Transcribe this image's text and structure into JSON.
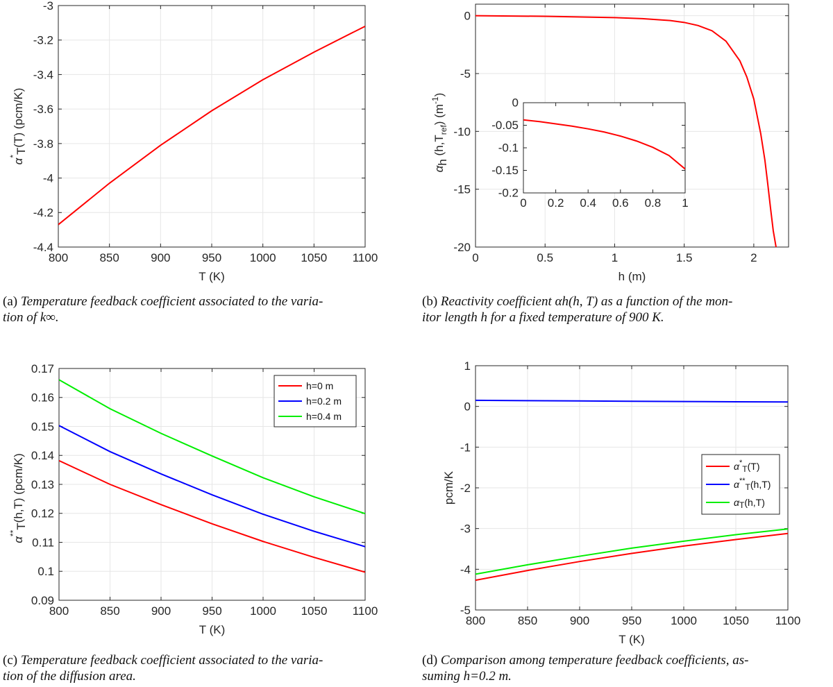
{
  "chart_data": [
    {
      "id": "a",
      "type": "line",
      "xlabel": "T (K)",
      "ylabel": "α*T(T)   (pcm/K)",
      "xlim": [
        800,
        1100
      ],
      "ylim": [
        -4.4,
        -3
      ],
      "xticks": [
        800,
        850,
        900,
        950,
        1000,
        1050,
        1100
      ],
      "yticks": [
        -4.4,
        -4.2,
        -4,
        -3.8,
        -3.6,
        -3.4,
        -3.2,
        -3
      ],
      "ytick_labels": [
        "-4.4",
        "-4.2",
        "-4",
        "-3.8",
        "-3.6",
        "-3.4",
        "-3.2",
        "-3"
      ],
      "grid": true,
      "series": [
        {
          "color": "#ff0000",
          "x": [
            800,
            850,
            900,
            950,
            1000,
            1050,
            1100
          ],
          "y": [
            -4.27,
            -4.03,
            -3.81,
            -3.61,
            -3.43,
            -3.27,
            -3.12
          ]
        }
      ]
    },
    {
      "id": "b",
      "type": "line",
      "xlabel": "h (m)",
      "ylabel": "αh(h,Tref)   (m-1)",
      "xlim": [
        0,
        2.25
      ],
      "ylim": [
        -20,
        1
      ],
      "xticks": [
        0,
        0.5,
        1,
        1.5,
        2
      ],
      "yticks": [
        -20,
        -15,
        -10,
        -5,
        0
      ],
      "grid": true,
      "series": [
        {
          "color": "#ff0000",
          "x": [
            0,
            0.5,
            1.0,
            1.2,
            1.4,
            1.5,
            1.6,
            1.7,
            1.8,
            1.9,
            1.95,
            2.0,
            2.05,
            2.08,
            2.1,
            2.12,
            2.14,
            2.16
          ],
          "y": [
            0,
            -0.05,
            -0.16,
            -0.25,
            -0.42,
            -0.58,
            -0.85,
            -1.3,
            -2.2,
            -3.9,
            -5.3,
            -7.2,
            -10.2,
            -12.5,
            -14.5,
            -16.6,
            -18.6,
            -20
          ]
        }
      ],
      "inset": {
        "type": "line",
        "xlim": [
          0,
          1
        ],
        "ylim": [
          -0.2,
          0
        ],
        "xticks": [
          0,
          0.2,
          0.4,
          0.6,
          0.8,
          1
        ],
        "yticks": [
          -0.2,
          -0.15,
          -0.1,
          -0.05,
          0
        ],
        "series": [
          {
            "color": "#ff0000",
            "x": [
              0,
              0.1,
              0.2,
              0.3,
              0.4,
              0.5,
              0.6,
              0.7,
              0.8,
              0.9,
              1.0
            ],
            "y": [
              -0.038,
              -0.042,
              -0.047,
              -0.052,
              -0.058,
              -0.065,
              -0.074,
              -0.085,
              -0.099,
              -0.117,
              -0.147
            ]
          }
        ]
      }
    },
    {
      "id": "c",
      "type": "line",
      "xlabel": "T (K)",
      "ylabel": "α**T(h,T)   (pcm/K)",
      "xlim": [
        800,
        1100
      ],
      "ylim": [
        0.09,
        0.17
      ],
      "xticks": [
        800,
        850,
        900,
        950,
        1000,
        1050,
        1100
      ],
      "yticks": [
        0.09,
        0.1,
        0.11,
        0.12,
        0.13,
        0.14,
        0.15,
        0.16,
        0.17
      ],
      "ytick_labels": [
        "0.09",
        "0.1",
        "0.11",
        "0.12",
        "0.13",
        "0.14",
        "0.15",
        "0.16",
        "0.17"
      ],
      "grid": true,
      "legend": "top-right",
      "series": [
        {
          "name": "h=0 m",
          "color": "#ff0000",
          "x": [
            800,
            850,
            900,
            950,
            1000,
            1050,
            1100
          ],
          "y": [
            0.1382,
            0.13,
            0.123,
            0.1164,
            0.1103,
            0.1048,
            0.0997
          ]
        },
        {
          "name": "h=0.2 m",
          "color": "#0000ff",
          "x": [
            800,
            850,
            900,
            950,
            1000,
            1050,
            1100
          ],
          "y": [
            0.1503,
            0.1413,
            0.1336,
            0.1264,
            0.1197,
            0.1138,
            0.1085
          ]
        },
        {
          "name": "h=0.4 m",
          "color": "#00ee00",
          "x": [
            800,
            850,
            900,
            950,
            1000,
            1050,
            1100
          ],
          "y": [
            0.1661,
            0.1561,
            0.1476,
            0.1398,
            0.1323,
            0.1257,
            0.1199
          ]
        }
      ]
    },
    {
      "id": "d",
      "type": "line",
      "xlabel": "T (K)",
      "ylabel": "pcm/K",
      "xlim": [
        800,
        1100
      ],
      "ylim": [
        -5,
        1
      ],
      "xticks": [
        800,
        850,
        900,
        950,
        1000,
        1050,
        1100
      ],
      "yticks": [
        -5,
        -4,
        -3,
        -2,
        -1,
        0,
        1
      ],
      "grid": true,
      "legend": "right",
      "series": [
        {
          "name": "α*T(T)",
          "color": "#ff0000",
          "x": [
            800,
            850,
            900,
            950,
            1000,
            1050,
            1100
          ],
          "y": [
            -4.27,
            -4.03,
            -3.81,
            -3.61,
            -3.43,
            -3.27,
            -3.12
          ]
        },
        {
          "name": "α**T(h,T)",
          "color": "#0000ff",
          "x": [
            800,
            850,
            900,
            950,
            1000,
            1050,
            1100
          ],
          "y": [
            0.15,
            0.141,
            0.134,
            0.126,
            0.12,
            0.114,
            0.109
          ]
        },
        {
          "name": "αT(h,T)",
          "color": "#00ee00",
          "x": [
            800,
            850,
            900,
            950,
            1000,
            1050,
            1100
          ],
          "y": [
            -4.12,
            -3.89,
            -3.68,
            -3.48,
            -3.31,
            -3.15,
            -3.01
          ]
        }
      ]
    }
  ],
  "captions": {
    "a": {
      "label": "(a)",
      "line1": "Temperature feedback coefficient associated to the varia-",
      "line2": "tion of k∞."
    },
    "b": {
      "label": "(b)",
      "line1": "Reactivity coefficient αh(h, T) as a function of the mon-",
      "line2": "itor length h for a fixed temperature of 900 K."
    },
    "c": {
      "label": "(c)",
      "line1": "Temperature feedback coefficient associated to the varia-",
      "line2": "tion of the diffusion area."
    },
    "d": {
      "label": "(d)",
      "line1": "Comparison among temperature feedback coefficients, as-",
      "line2": "suming h=0.2 m."
    }
  }
}
